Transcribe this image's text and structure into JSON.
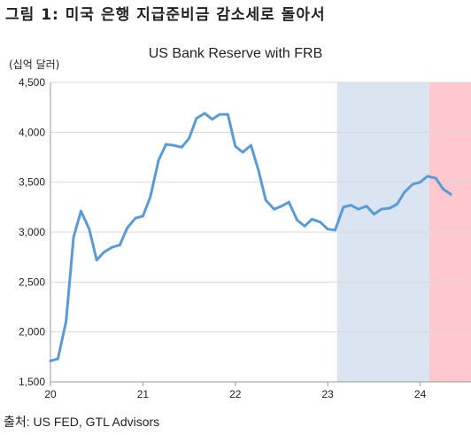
{
  "figure_title": "그림 1: 미국 은행 지급준비금 감소세로 돌아서",
  "source_note": "출처: US FED, GTL Advisors",
  "chart_data": {
    "type": "line",
    "title": "US Bank Reserve with FRB",
    "unit_label": "(십억 달러)",
    "xlabel": "",
    "ylabel": "",
    "ylim": [
      1500,
      4500
    ],
    "xlim": [
      2020.0,
      2024.55
    ],
    "yticks": [
      1500,
      2000,
      2500,
      3000,
      3500,
      4000,
      4500
    ],
    "ytick_labels": [
      "1,500",
      "2,000",
      "2,500",
      "3,000",
      "3,500",
      "4,000",
      "4,500"
    ],
    "xticks": [
      2020,
      2021,
      2022,
      2023,
      2024
    ],
    "xtick_labels": [
      "20",
      "21",
      "22",
      "23",
      "24"
    ],
    "grid": "horizontal",
    "series": [
      {
        "color": "#5b9bd5",
        "x": [
          2020.0,
          2020.08,
          2020.17,
          2020.25,
          2020.33,
          2020.42,
          2020.5,
          2020.58,
          2020.67,
          2020.75,
          2020.83,
          2020.92,
          2021.0,
          2021.08,
          2021.17,
          2021.25,
          2021.33,
          2021.42,
          2021.5,
          2021.58,
          2021.67,
          2021.75,
          2021.83,
          2021.92,
          2022.0,
          2022.08,
          2022.17,
          2022.25,
          2022.33,
          2022.42,
          2022.5,
          2022.58,
          2022.67,
          2022.75,
          2022.83,
          2022.92,
          2023.0,
          2023.08,
          2023.17,
          2023.25,
          2023.33,
          2023.42,
          2023.5,
          2023.58,
          2023.67,
          2023.75,
          2023.83,
          2023.92,
          2024.0,
          2024.08,
          2024.17,
          2024.25,
          2024.33
        ],
        "y": [
          1710,
          1730,
          2110,
          2950,
          3210,
          3030,
          2720,
          2800,
          2850,
          2870,
          3040,
          3140,
          3160,
          3350,
          3720,
          3880,
          3870,
          3850,
          3940,
          4140,
          4190,
          4130,
          4180,
          4180,
          3860,
          3800,
          3870,
          3620,
          3320,
          3230,
          3260,
          3300,
          3120,
          3060,
          3130,
          3100,
          3030,
          3020,
          3250,
          3270,
          3230,
          3260,
          3180,
          3230,
          3240,
          3280,
          3400,
          3480,
          3500,
          3560,
          3540,
          3430,
          3380
        ]
      }
    ],
    "shaded_regions": [
      {
        "from": 2023.1,
        "to": 2024.1,
        "color": "#dbe5f1"
      },
      {
        "from": 2024.1,
        "to": 2024.55,
        "color": "#ffc7ce"
      }
    ]
  }
}
